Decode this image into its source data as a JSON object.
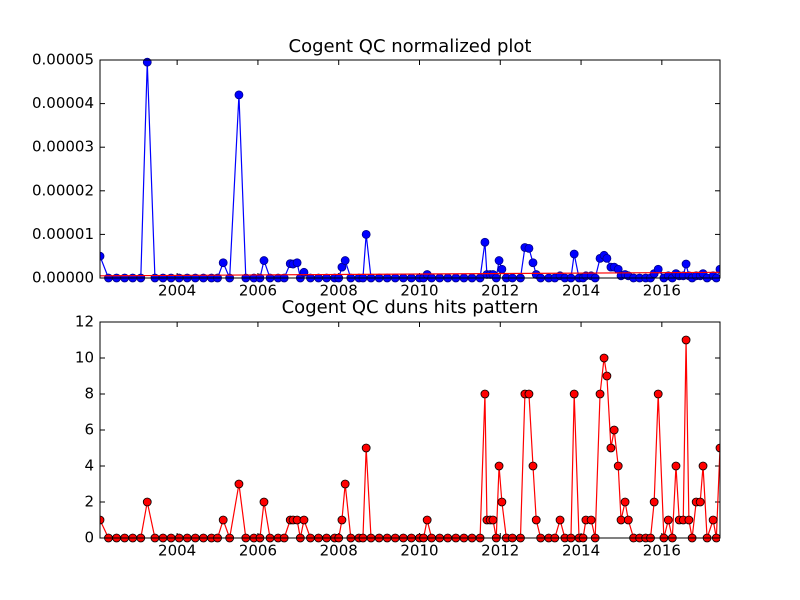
{
  "chart_data": [
    {
      "type": "line",
      "title": "Cogent QC normalized plot",
      "xlim": [
        2002.09,
        2017.44
      ],
      "xticks": [
        2004,
        2006,
        2008,
        2010,
        2012,
        2014,
        2016
      ],
      "ylim": [
        0,
        5e-05
      ],
      "yticks": [
        {
          "value": 0,
          "label": "0.00000"
        },
        {
          "value": 1e-05,
          "label": "0.00001"
        },
        {
          "value": 2e-05,
          "label": "0.00002"
        },
        {
          "value": 3e-05,
          "label": "0.00003"
        },
        {
          "value": 4e-05,
          "label": "0.00004"
        },
        {
          "value": 5e-05,
          "label": "0.00005"
        }
      ],
      "series": [
        {
          "color": "#0000ff",
          "marker": true,
          "x": [
            2002.09,
            2002.3,
            2002.5,
            2002.7,
            2002.9,
            2003.1,
            2003.26,
            2003.45,
            2003.65,
            2003.85,
            2004.05,
            2004.25,
            2004.45,
            2004.65,
            2004.85,
            2005.0,
            2005.14,
            2005.3,
            2005.53,
            2005.7,
            2005.9,
            2006.05,
            2006.15,
            2006.3,
            2006.5,
            2006.65,
            2006.8,
            2006.87,
            2006.97,
            2007.05,
            2007.14,
            2007.3,
            2007.5,
            2007.7,
            2007.9,
            2008.0,
            2008.08,
            2008.16,
            2008.3,
            2008.5,
            2008.6,
            2008.68,
            2008.8,
            2009.0,
            2009.2,
            2009.4,
            2009.6,
            2009.8,
            2010.0,
            2010.1,
            2010.19,
            2010.3,
            2010.5,
            2010.7,
            2010.9,
            2011.1,
            2011.3,
            2011.5,
            2011.62,
            2011.67,
            2011.75,
            2011.82,
            2011.9,
            2011.97,
            2012.04,
            2012.15,
            2012.3,
            2012.5,
            2012.61,
            2012.71,
            2012.81,
            2012.89,
            2013.0,
            2013.2,
            2013.35,
            2013.48,
            2013.6,
            2013.75,
            2013.83,
            2013.95,
            2014.05,
            2014.12,
            2014.25,
            2014.35,
            2014.47,
            2014.57,
            2014.64,
            2014.74,
            2014.82,
            2014.92,
            2014.99,
            2015.09,
            2015.17,
            2015.3,
            2015.45,
            2015.6,
            2015.72,
            2015.81,
            2015.91,
            2016.05,
            2016.16,
            2016.26,
            2016.35,
            2016.43,
            2016.53,
            2016.6,
            2016.67,
            2016.75,
            2016.85,
            2016.95,
            2017.02,
            2017.12,
            2017.27,
            2017.35,
            2017.44
          ],
          "values": [
            5e-06,
            0,
            0,
            0,
            0,
            0,
            4.95e-05,
            0,
            0,
            0,
            0,
            0,
            0,
            0,
            0,
            0,
            3.5e-06,
            0,
            4.2e-05,
            0,
            0,
            0,
            4e-06,
            0,
            0,
            0,
            3.3e-06,
            3.2e-06,
            3.5e-06,
            0,
            1.3e-06,
            0,
            0,
            0,
            0,
            0,
            2.5e-06,
            4e-06,
            0,
            0,
            0,
            1e-05,
            0,
            0,
            0,
            0,
            0,
            0,
            0,
            0,
            8e-07,
            0,
            0,
            0,
            0,
            0,
            0,
            0,
            8.2e-06,
            8e-07,
            8e-07,
            8e-07,
            0,
            4e-06,
            2e-06,
            0,
            0,
            0,
            7e-06,
            6.8e-06,
            3.5e-06,
            8e-07,
            0,
            0,
            0,
            5e-07,
            0,
            0,
            5.5e-06,
            0,
            0,
            5e-07,
            5e-07,
            0,
            4.5e-06,
            5.2e-06,
            4.5e-06,
            2.5e-06,
            2.5e-06,
            2e-06,
            5e-07,
            8e-07,
            5e-07,
            0,
            0,
            0,
            0,
            1e-06,
            2e-06,
            0,
            5e-07,
            0,
            1e-06,
            5e-07,
            5e-07,
            3.2e-06,
            5e-07,
            0,
            5e-07,
            5e-07,
            1e-06,
            0,
            5e-07,
            0,
            2e-06
          ]
        },
        {
          "color": "#ff0000",
          "marker": false,
          "x": [
            2002.09,
            2017.44
          ],
          "values": [
            5e-07,
            1.3e-06
          ]
        }
      ]
    },
    {
      "type": "line",
      "title": "Cogent QC duns hits pattern",
      "xlim": [
        2002.09,
        2017.44
      ],
      "xticks": [
        2004,
        2006,
        2008,
        2010,
        2012,
        2014,
        2016
      ],
      "ylim": [
        0,
        12
      ],
      "yticks": [
        0,
        2,
        4,
        6,
        8,
        10,
        12
      ],
      "series": [
        {
          "color": "#ff0000",
          "marker": true,
          "x": [
            2002.09,
            2002.3,
            2002.5,
            2002.7,
            2002.9,
            2003.1,
            2003.26,
            2003.45,
            2003.65,
            2003.85,
            2004.05,
            2004.25,
            2004.45,
            2004.65,
            2004.85,
            2005.0,
            2005.14,
            2005.3,
            2005.53,
            2005.7,
            2005.9,
            2006.05,
            2006.15,
            2006.3,
            2006.5,
            2006.65,
            2006.8,
            2006.87,
            2006.97,
            2007.05,
            2007.14,
            2007.3,
            2007.5,
            2007.7,
            2007.9,
            2008.0,
            2008.08,
            2008.16,
            2008.3,
            2008.5,
            2008.6,
            2008.68,
            2008.8,
            2009.0,
            2009.2,
            2009.4,
            2009.6,
            2009.8,
            2010.0,
            2010.1,
            2010.19,
            2010.3,
            2010.5,
            2010.7,
            2010.9,
            2011.1,
            2011.3,
            2011.5,
            2011.62,
            2011.67,
            2011.75,
            2011.82,
            2011.9,
            2011.97,
            2012.04,
            2012.15,
            2012.3,
            2012.5,
            2012.61,
            2012.71,
            2012.81,
            2012.89,
            2013.0,
            2013.2,
            2013.35,
            2013.48,
            2013.6,
            2013.75,
            2013.83,
            2013.95,
            2014.05,
            2014.12,
            2014.25,
            2014.35,
            2014.47,
            2014.57,
            2014.64,
            2014.74,
            2014.82,
            2014.92,
            2014.99,
            2015.09,
            2015.17,
            2015.3,
            2015.45,
            2015.6,
            2015.72,
            2015.81,
            2015.91,
            2016.05,
            2016.16,
            2016.26,
            2016.35,
            2016.43,
            2016.53,
            2016.6,
            2016.67,
            2016.75,
            2016.85,
            2016.95,
            2017.02,
            2017.12,
            2017.27,
            2017.35,
            2017.44
          ],
          "values": [
            1,
            0,
            0,
            0,
            0,
            0,
            2,
            0,
            0,
            0,
            0,
            0,
            0,
            0,
            0,
            0,
            1,
            0,
            3,
            0,
            0,
            0,
            2,
            0,
            0,
            0,
            1,
            1,
            1,
            0,
            1,
            0,
            0,
            0,
            0,
            0,
            1,
            3,
            0,
            0,
            0,
            5,
            0,
            0,
            0,
            0,
            0,
            0,
            0,
            0,
            1,
            0,
            0,
            0,
            0,
            0,
            0,
            0,
            8,
            1,
            1,
            1,
            0,
            4,
            2,
            0,
            0,
            0,
            8,
            8,
            4,
            1,
            0,
            0,
            0,
            1,
            0,
            0,
            8,
            0,
            0,
            1,
            1,
            0,
            8,
            10,
            9,
            5,
            6,
            4,
            1,
            2,
            1,
            0,
            0,
            0,
            0,
            2,
            8,
            0,
            1,
            0,
            4,
            1,
            1,
            11,
            1,
            0,
            2,
            2,
            4,
            0,
            1,
            0,
            5
          ]
        }
      ]
    }
  ]
}
